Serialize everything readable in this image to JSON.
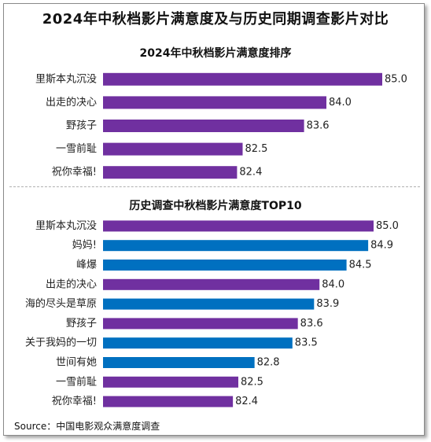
{
  "title": "2024年中秋档影片满意度及与历史同期调查影片对比",
  "source": "Source：中国电影观众满意度调查",
  "colors": {
    "purple": "#7030a0",
    "blue": "#0070c0"
  },
  "chart_data": [
    {
      "type": "bar",
      "orientation": "horizontal",
      "title": "2024年中秋档影片满意度排序",
      "categories": [
        "里斯本丸沉没",
        "出走的决心",
        "野孩子",
        "一雪前耻",
        "祝你幸福!"
      ],
      "values": [
        85.0,
        84.0,
        83.6,
        82.5,
        82.4
      ],
      "labels": [
        "85.0",
        "84.0",
        "83.6",
        "82.5",
        "82.4"
      ],
      "bar_colors": [
        "purple",
        "purple",
        "purple",
        "purple",
        "purple"
      ],
      "xlim": [
        80.0,
        85.0
      ],
      "grid": false
    },
    {
      "type": "bar",
      "orientation": "horizontal",
      "title": "历史调查中秋档影片满意度TOP10",
      "categories": [
        "里斯本丸沉没",
        "妈妈!",
        "峰爆",
        "出走的决心",
        "海的尽头是草原",
        "野孩子",
        "关于我妈的一切",
        "世间有她",
        "一雪前耻",
        "祝你幸福!"
      ],
      "values": [
        85.0,
        84.9,
        84.5,
        84.0,
        83.9,
        83.6,
        83.5,
        82.8,
        82.5,
        82.4
      ],
      "labels": [
        "85.0",
        "84.9",
        "84.5",
        "84.0",
        "83.9",
        "83.6",
        "83.5",
        "82.8",
        "82.5",
        "82.4"
      ],
      "bar_colors": [
        "purple",
        "blue",
        "blue",
        "purple",
        "blue",
        "purple",
        "blue",
        "blue",
        "purple",
        "purple"
      ],
      "xlim": [
        80.0,
        85.0
      ],
      "grid": false
    }
  ]
}
